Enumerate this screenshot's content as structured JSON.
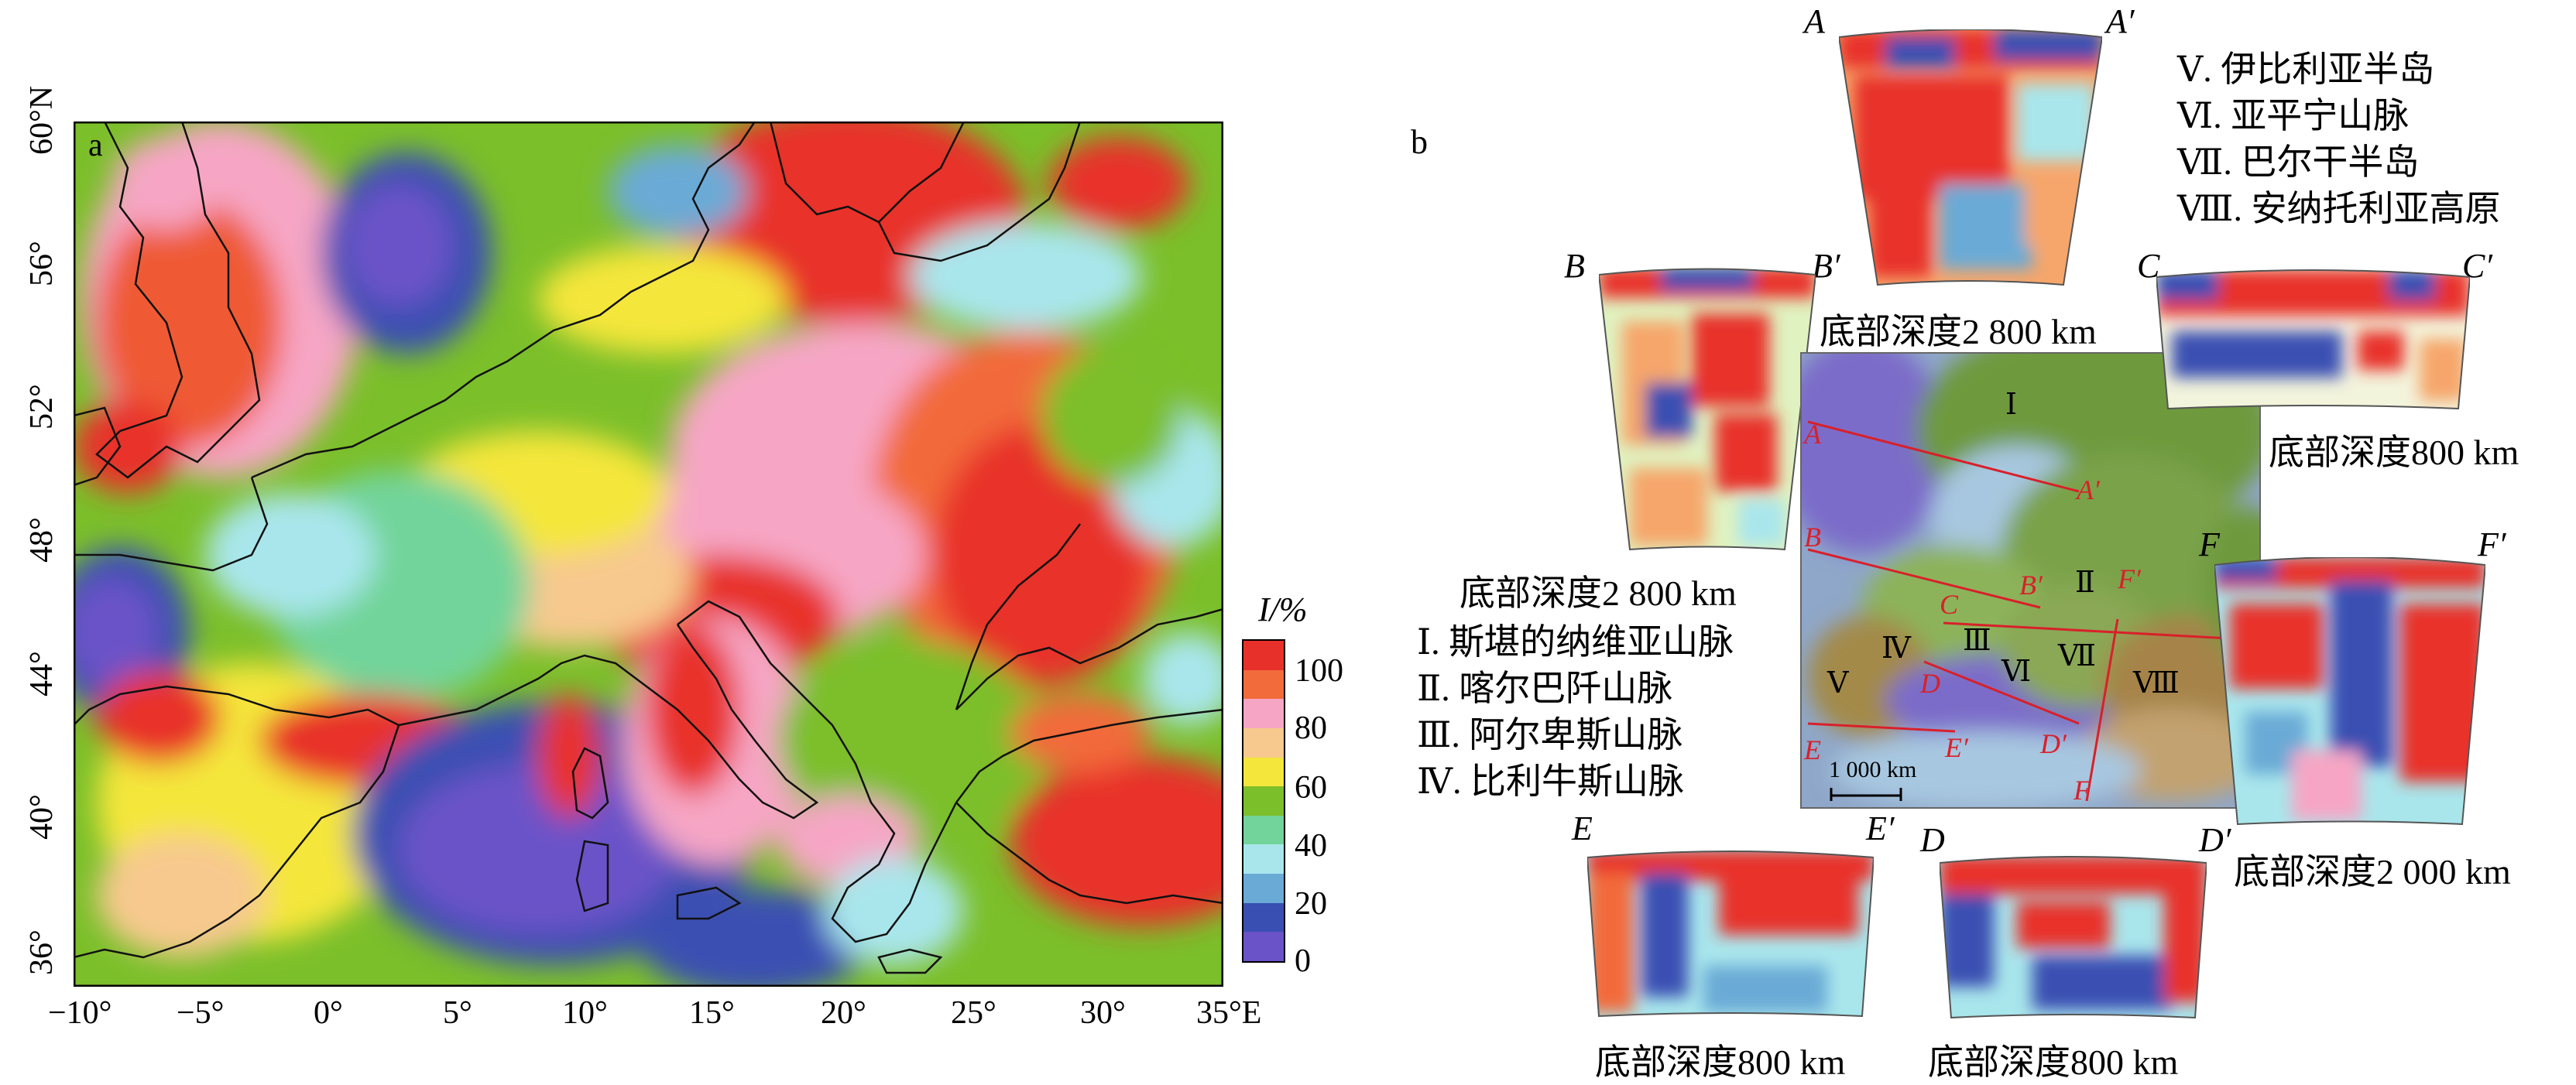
{
  "panel_a": {
    "letter": "a",
    "y_ticks": [
      "60°N",
      "56°",
      "52°",
      "48°",
      "44°",
      "40°",
      "36°"
    ],
    "x_ticks": [
      "−10°",
      "−5°",
      "0°",
      "5°",
      "10°",
      "15°",
      "20°",
      "25°",
      "30°",
      "35°E"
    ],
    "legend_title": "I/%",
    "legend_ticks": [
      "100",
      "80",
      "60",
      "40",
      "20",
      "0"
    ],
    "legend_colors": [
      "#e8302a",
      "#f26b3a",
      "#f6a6c4",
      "#f7c98e",
      "#f4e63a",
      "#7bbf2a",
      "#72d49a",
      "#a9e6ec",
      "#6aaad6",
      "#3a4fb2",
      "#6a52c8"
    ]
  },
  "panel_b": {
    "letter": "b",
    "regions_left": [
      "Ⅰ. 斯堪的纳维亚山脉",
      "Ⅱ. 喀尔巴阡山脉",
      "Ⅲ. 阿尔卑斯山脉",
      "Ⅳ. 比利牛斯山脉"
    ],
    "regions_right": [
      "Ⅴ. 伊比利亚半岛",
      "Ⅵ. 亚平宁山脉",
      "Ⅶ. 巴尔干半岛",
      "Ⅷ. 安纳托利亚高原"
    ],
    "sections": {
      "A": {
        "left": "A",
        "right": "A′",
        "caption": "底部深度2 800 km"
      },
      "B": {
        "left": "B",
        "right": "B′",
        "caption": "底部深度2 800 km"
      },
      "C": {
        "left": "C",
        "right": "C′",
        "caption": "底部深度800 km"
      },
      "F": {
        "left": "F",
        "right": "F′",
        "caption": "底部深度2 000 km"
      },
      "E": {
        "left": "E",
        "right": "E′",
        "caption": "底部深度800 km"
      },
      "D": {
        "left": "D",
        "right": "D′",
        "caption": "底部深度800 km"
      }
    },
    "map_labels": {
      "A": "A",
      "A2": "A′",
      "B": "B",
      "B2": "B′",
      "C": "C",
      "C2": "C′",
      "D": "D",
      "D2": "D′",
      "E": "E",
      "E2": "E′",
      "F": "F",
      "F2": "F′",
      "r1": "Ⅰ",
      "r2": "Ⅱ",
      "r3": "Ⅲ",
      "r4": "Ⅳ",
      "r5": "Ⅴ",
      "r6": "Ⅵ",
      "r7": "Ⅶ",
      "r8": "Ⅷ",
      "scale": "1 000 km"
    }
  }
}
